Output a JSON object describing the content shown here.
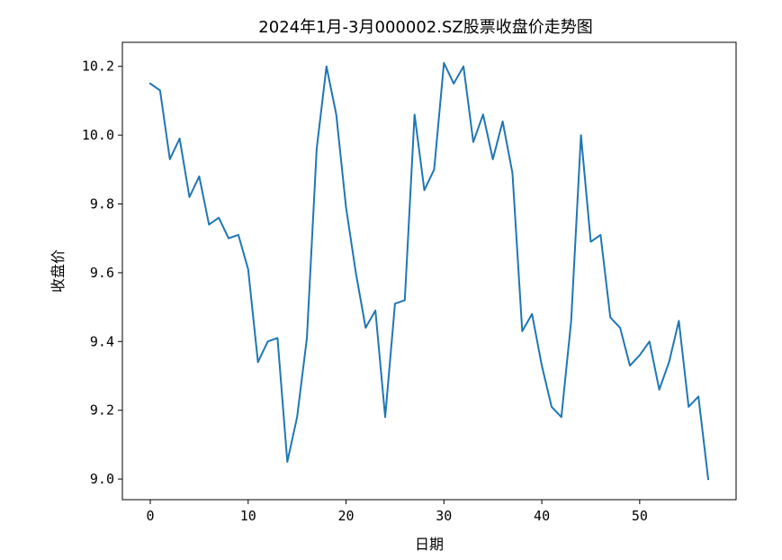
{
  "chart_data": {
    "type": "line",
    "title": "2024年1月-3月000002.SZ股票收盘价走势图",
    "xlabel": "日期",
    "ylabel": "收盘价",
    "xlim": [
      -2.85,
      59.85
    ],
    "ylim": [
      8.94,
      10.27
    ],
    "x_ticks": [
      0,
      10,
      20,
      30,
      40,
      50
    ],
    "y_ticks": [
      9.0,
      9.2,
      9.4,
      9.6,
      9.8,
      10.0,
      10.2
    ],
    "x_tick_labels": [
      "0",
      "10",
      "20",
      "30",
      "40",
      "50"
    ],
    "y_tick_labels": [
      "9.0",
      "9.2",
      "9.4",
      "9.6",
      "9.8",
      "10.0",
      "10.2"
    ],
    "grid": false,
    "legend": "none",
    "colors": {
      "line": "#1f77b4",
      "axes": "#000000",
      "background": "#ffffff"
    },
    "x": [
      0,
      1,
      2,
      3,
      4,
      5,
      6,
      7,
      8,
      9,
      10,
      11,
      12,
      13,
      14,
      15,
      16,
      17,
      18,
      19,
      20,
      21,
      22,
      23,
      24,
      25,
      26,
      27,
      28,
      29,
      30,
      31,
      32,
      33,
      34,
      35,
      36,
      37,
      38,
      39,
      40,
      41,
      42,
      43,
      44,
      45,
      46,
      47,
      48,
      49,
      50,
      51,
      52,
      53,
      54,
      55,
      56,
      57
    ],
    "series": [
      {
        "values": [
          10.15,
          10.13,
          9.93,
          9.99,
          9.82,
          9.88,
          9.74,
          9.76,
          9.7,
          9.71,
          9.61,
          9.34,
          9.4,
          9.41,
          9.05,
          9.18,
          9.41,
          9.96,
          10.2,
          10.06,
          9.79,
          9.6,
          9.44,
          9.49,
          9.18,
          9.51,
          9.52,
          10.06,
          9.84,
          9.9,
          10.21,
          10.15,
          10.2,
          9.98,
          10.06,
          9.93,
          10.04,
          9.89,
          9.43,
          9.48,
          9.33,
          9.21,
          9.18,
          9.46,
          10.0,
          9.69,
          9.71,
          9.47,
          9.44,
          9.33,
          9.36,
          9.4,
          9.26,
          9.34,
          9.46,
          9.21,
          9.24,
          9.0
        ]
      }
    ]
  }
}
